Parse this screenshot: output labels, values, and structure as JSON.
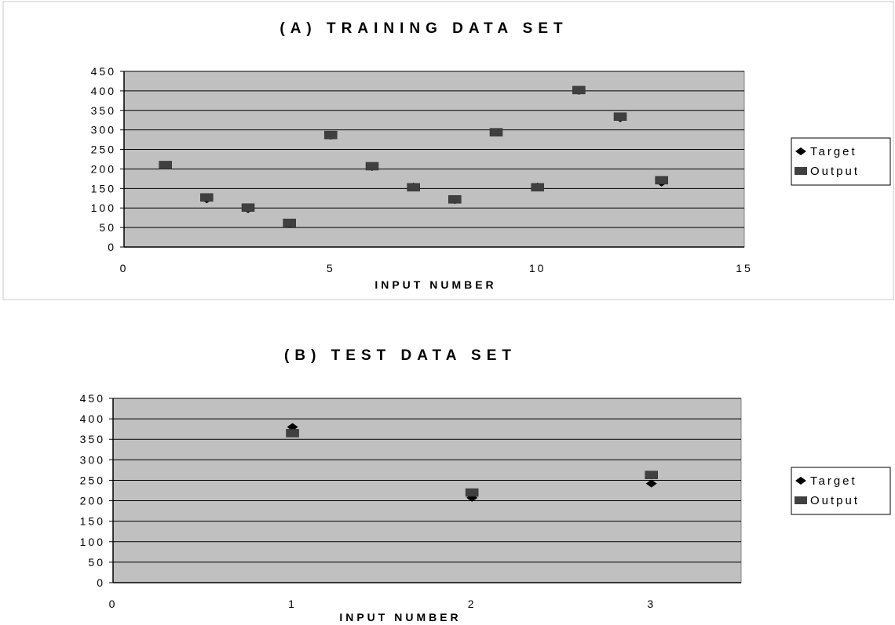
{
  "chart_data": [
    {
      "type": "scatter",
      "title": "(A) TRAINING DATA SET",
      "xlabel": "INPUT NUMBER",
      "ylabel": "",
      "xlim": [
        0,
        15
      ],
      "ylim": [
        0,
        450
      ],
      "xticks": [
        0,
        5,
        10,
        15
      ],
      "yticks": [
        0,
        50,
        100,
        150,
        200,
        250,
        300,
        350,
        400,
        450
      ],
      "grid": "horizontal",
      "legend": "right",
      "series": [
        {
          "name": "Target",
          "marker": "diamond",
          "color": "#000000",
          "x": [
            1,
            2,
            3,
            4,
            5,
            6,
            7,
            8,
            9,
            10,
            11,
            12,
            13
          ],
          "y": [
            210,
            122,
            97,
            60,
            285,
            205,
            155,
            120,
            293,
            155,
            400,
            330,
            165
          ]
        },
        {
          "name": "Output",
          "marker": "square",
          "color": "#404040",
          "x": [
            1,
            2,
            3,
            4,
            5,
            6,
            7,
            8,
            9,
            10,
            11,
            12,
            13
          ],
          "y": [
            210,
            127,
            101,
            62,
            287,
            207,
            153,
            122,
            294,
            153,
            402,
            334,
            171
          ]
        }
      ]
    },
    {
      "type": "scatter",
      "title": "(B) TEST DATA SET",
      "xlabel": "INPUT NUMBER",
      "ylabel": "",
      "xlim": [
        0,
        3.5
      ],
      "ylim": [
        0,
        450
      ],
      "xticks": [
        0,
        1,
        2,
        3
      ],
      "yticks": [
        0,
        50,
        100,
        150,
        200,
        250,
        300,
        350,
        400,
        450
      ],
      "grid": "horizontal",
      "legend": "right",
      "series": [
        {
          "name": "Target",
          "marker": "diamond",
          "color": "#000000",
          "x": [
            1,
            2,
            3
          ],
          "y": [
            380,
            207,
            242
          ]
        },
        {
          "name": "Output",
          "marker": "square",
          "color": "#404040",
          "x": [
            1,
            2,
            3
          ],
          "y": [
            365,
            220,
            263
          ]
        }
      ]
    }
  ]
}
